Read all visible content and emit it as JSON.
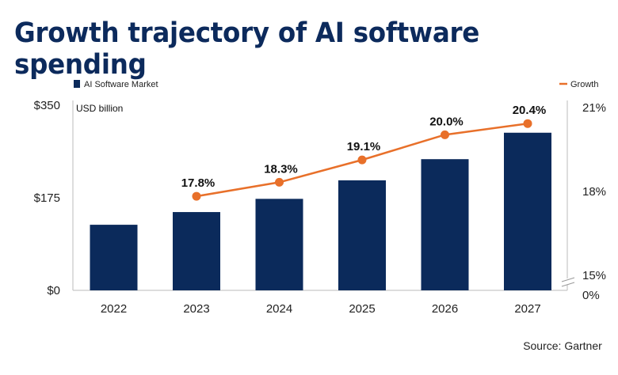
{
  "chart_data": {
    "type": "bar",
    "title": "Growth trajectory of AI software spending",
    "ylabel": "USD billion",
    "categories": [
      "2022",
      "2023",
      "2024",
      "2025",
      "2026",
      "2027"
    ],
    "series": [
      {
        "name": "AI Software Market",
        "type": "bar",
        "axis": "left",
        "values": [
          124,
          148,
          173,
          208,
          248,
          298
        ],
        "color": "#0b2a5b"
      },
      {
        "name": "Growth",
        "type": "line",
        "axis": "right",
        "values": [
          null,
          17.8,
          18.3,
          19.1,
          20.0,
          20.4
        ],
        "labels": [
          null,
          "17.8%",
          "18.3%",
          "19.1%",
          "20.0%",
          "20.4%"
        ],
        "color": "#e8702a"
      }
    ],
    "left_axis": {
      "ylim": [
        0,
        350
      ],
      "ticks": [
        "$0",
        "$175",
        "$350"
      ]
    },
    "right_axis": {
      "ylim": [
        15,
        21
      ],
      "ticks": [
        "0%",
        "15%",
        "18%",
        "21%"
      ],
      "axis_break": true
    },
    "legend_placement": "top",
    "grid": false,
    "source": "Source: Gartner"
  }
}
